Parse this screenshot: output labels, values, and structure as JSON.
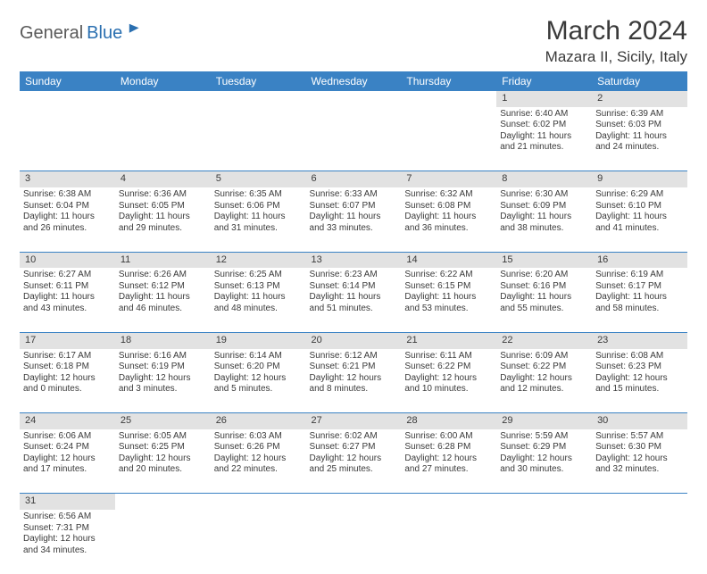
{
  "logo": {
    "word1": "General",
    "word2": "Blue",
    "text1_color": "#5a5a5a",
    "text2_color": "#2a6fb0"
  },
  "title": "March 2024",
  "location": "Mazara II, Sicily, Italy",
  "header_bg": "#3a82c4",
  "header_fg": "#ffffff",
  "daynum_bg": "#e2e2e2",
  "border_color": "#3a82c4",
  "text_color": "#3a3a3a",
  "day_headers": [
    "Sunday",
    "Monday",
    "Tuesday",
    "Wednesday",
    "Thursday",
    "Friday",
    "Saturday"
  ],
  "weeks": [
    [
      null,
      null,
      null,
      null,
      null,
      {
        "n": "1",
        "sr": "Sunrise: 6:40 AM",
        "ss": "Sunset: 6:02 PM",
        "d1": "Daylight: 11 hours",
        "d2": "and 21 minutes."
      },
      {
        "n": "2",
        "sr": "Sunrise: 6:39 AM",
        "ss": "Sunset: 6:03 PM",
        "d1": "Daylight: 11 hours",
        "d2": "and 24 minutes."
      }
    ],
    [
      {
        "n": "3",
        "sr": "Sunrise: 6:38 AM",
        "ss": "Sunset: 6:04 PM",
        "d1": "Daylight: 11 hours",
        "d2": "and 26 minutes."
      },
      {
        "n": "4",
        "sr": "Sunrise: 6:36 AM",
        "ss": "Sunset: 6:05 PM",
        "d1": "Daylight: 11 hours",
        "d2": "and 29 minutes."
      },
      {
        "n": "5",
        "sr": "Sunrise: 6:35 AM",
        "ss": "Sunset: 6:06 PM",
        "d1": "Daylight: 11 hours",
        "d2": "and 31 minutes."
      },
      {
        "n": "6",
        "sr": "Sunrise: 6:33 AM",
        "ss": "Sunset: 6:07 PM",
        "d1": "Daylight: 11 hours",
        "d2": "and 33 minutes."
      },
      {
        "n": "7",
        "sr": "Sunrise: 6:32 AM",
        "ss": "Sunset: 6:08 PM",
        "d1": "Daylight: 11 hours",
        "d2": "and 36 minutes."
      },
      {
        "n": "8",
        "sr": "Sunrise: 6:30 AM",
        "ss": "Sunset: 6:09 PM",
        "d1": "Daylight: 11 hours",
        "d2": "and 38 minutes."
      },
      {
        "n": "9",
        "sr": "Sunrise: 6:29 AM",
        "ss": "Sunset: 6:10 PM",
        "d1": "Daylight: 11 hours",
        "d2": "and 41 minutes."
      }
    ],
    [
      {
        "n": "10",
        "sr": "Sunrise: 6:27 AM",
        "ss": "Sunset: 6:11 PM",
        "d1": "Daylight: 11 hours",
        "d2": "and 43 minutes."
      },
      {
        "n": "11",
        "sr": "Sunrise: 6:26 AM",
        "ss": "Sunset: 6:12 PM",
        "d1": "Daylight: 11 hours",
        "d2": "and 46 minutes."
      },
      {
        "n": "12",
        "sr": "Sunrise: 6:25 AM",
        "ss": "Sunset: 6:13 PM",
        "d1": "Daylight: 11 hours",
        "d2": "and 48 minutes."
      },
      {
        "n": "13",
        "sr": "Sunrise: 6:23 AM",
        "ss": "Sunset: 6:14 PM",
        "d1": "Daylight: 11 hours",
        "d2": "and 51 minutes."
      },
      {
        "n": "14",
        "sr": "Sunrise: 6:22 AM",
        "ss": "Sunset: 6:15 PM",
        "d1": "Daylight: 11 hours",
        "d2": "and 53 minutes."
      },
      {
        "n": "15",
        "sr": "Sunrise: 6:20 AM",
        "ss": "Sunset: 6:16 PM",
        "d1": "Daylight: 11 hours",
        "d2": "and 55 minutes."
      },
      {
        "n": "16",
        "sr": "Sunrise: 6:19 AM",
        "ss": "Sunset: 6:17 PM",
        "d1": "Daylight: 11 hours",
        "d2": "and 58 minutes."
      }
    ],
    [
      {
        "n": "17",
        "sr": "Sunrise: 6:17 AM",
        "ss": "Sunset: 6:18 PM",
        "d1": "Daylight: 12 hours",
        "d2": "and 0 minutes."
      },
      {
        "n": "18",
        "sr": "Sunrise: 6:16 AM",
        "ss": "Sunset: 6:19 PM",
        "d1": "Daylight: 12 hours",
        "d2": "and 3 minutes."
      },
      {
        "n": "19",
        "sr": "Sunrise: 6:14 AM",
        "ss": "Sunset: 6:20 PM",
        "d1": "Daylight: 12 hours",
        "d2": "and 5 minutes."
      },
      {
        "n": "20",
        "sr": "Sunrise: 6:12 AM",
        "ss": "Sunset: 6:21 PM",
        "d1": "Daylight: 12 hours",
        "d2": "and 8 minutes."
      },
      {
        "n": "21",
        "sr": "Sunrise: 6:11 AM",
        "ss": "Sunset: 6:22 PM",
        "d1": "Daylight: 12 hours",
        "d2": "and 10 minutes."
      },
      {
        "n": "22",
        "sr": "Sunrise: 6:09 AM",
        "ss": "Sunset: 6:22 PM",
        "d1": "Daylight: 12 hours",
        "d2": "and 12 minutes."
      },
      {
        "n": "23",
        "sr": "Sunrise: 6:08 AM",
        "ss": "Sunset: 6:23 PM",
        "d1": "Daylight: 12 hours",
        "d2": "and 15 minutes."
      }
    ],
    [
      {
        "n": "24",
        "sr": "Sunrise: 6:06 AM",
        "ss": "Sunset: 6:24 PM",
        "d1": "Daylight: 12 hours",
        "d2": "and 17 minutes."
      },
      {
        "n": "25",
        "sr": "Sunrise: 6:05 AM",
        "ss": "Sunset: 6:25 PM",
        "d1": "Daylight: 12 hours",
        "d2": "and 20 minutes."
      },
      {
        "n": "26",
        "sr": "Sunrise: 6:03 AM",
        "ss": "Sunset: 6:26 PM",
        "d1": "Daylight: 12 hours",
        "d2": "and 22 minutes."
      },
      {
        "n": "27",
        "sr": "Sunrise: 6:02 AM",
        "ss": "Sunset: 6:27 PM",
        "d1": "Daylight: 12 hours",
        "d2": "and 25 minutes."
      },
      {
        "n": "28",
        "sr": "Sunrise: 6:00 AM",
        "ss": "Sunset: 6:28 PM",
        "d1": "Daylight: 12 hours",
        "d2": "and 27 minutes."
      },
      {
        "n": "29",
        "sr": "Sunrise: 5:59 AM",
        "ss": "Sunset: 6:29 PM",
        "d1": "Daylight: 12 hours",
        "d2": "and 30 minutes."
      },
      {
        "n": "30",
        "sr": "Sunrise: 5:57 AM",
        "ss": "Sunset: 6:30 PM",
        "d1": "Daylight: 12 hours",
        "d2": "and 32 minutes."
      }
    ],
    [
      {
        "n": "31",
        "sr": "Sunrise: 6:56 AM",
        "ss": "Sunset: 7:31 PM",
        "d1": "Daylight: 12 hours",
        "d2": "and 34 minutes."
      },
      null,
      null,
      null,
      null,
      null,
      null
    ]
  ]
}
